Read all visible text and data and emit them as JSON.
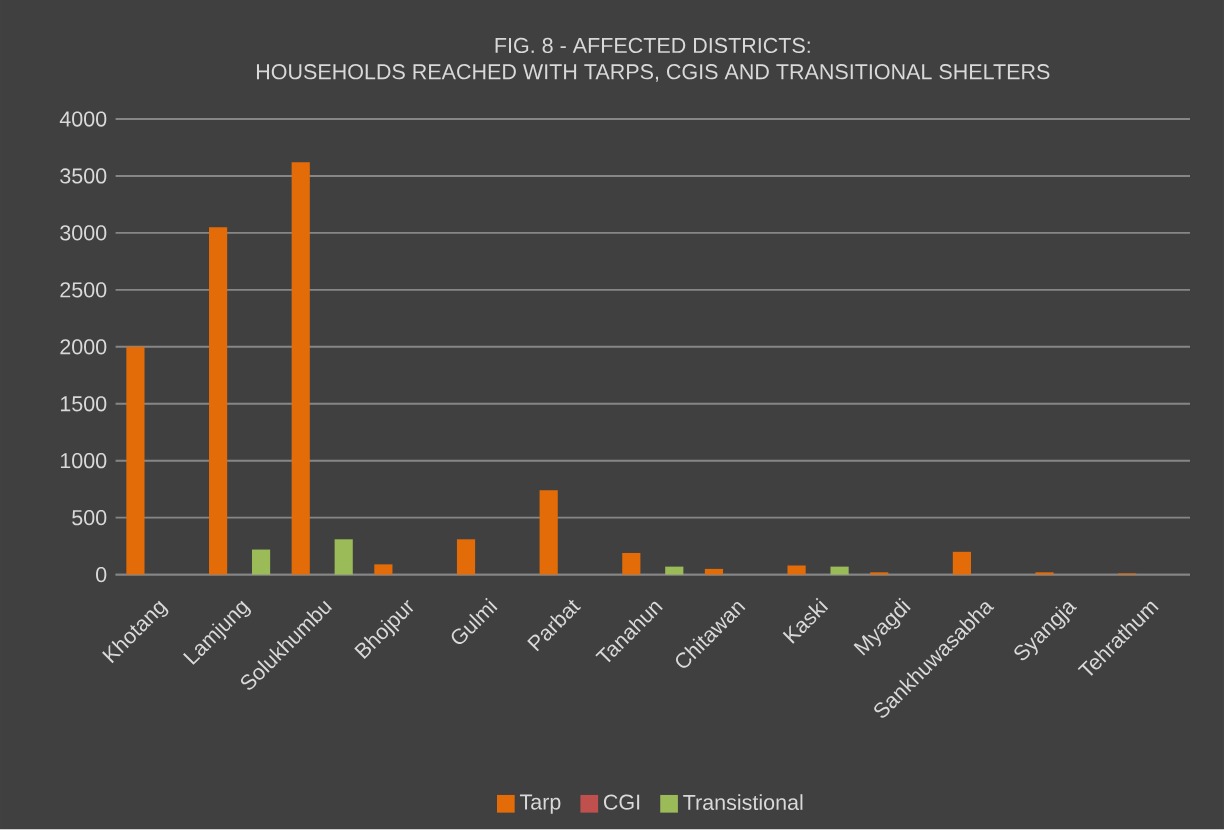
{
  "chart_data": {
    "type": "bar",
    "title": "FIG. 8 - AFFECTED DISTRICTS:\nHOUSEHOLDS REACHED WITH TARPS, CGIS AND TRANSITIONAL SHELTERS",
    "categories": [
      "Khotang",
      "Lamjung",
      "Solukhumbu",
      "Bhojpur",
      "Gulmi",
      "Parbat",
      "Tanahun",
      "Chitawan",
      "Kaski",
      "Myagdi",
      "Sankhuwasabha",
      "Syangja",
      "Tehrathum"
    ],
    "series": [
      {
        "name": "Tarp",
        "color": "#e36c09",
        "values": [
          2000,
          3050,
          3620,
          90,
          310,
          740,
          190,
          50,
          80,
          20,
          200,
          20,
          10
        ]
      },
      {
        "name": "CGI",
        "color": "#c0504d",
        "values": [
          0,
          0,
          0,
          0,
          0,
          0,
          null,
          0,
          0,
          0,
          0,
          0,
          0
        ]
      },
      {
        "name": "Transistional",
        "color": "#9bbb59",
        "values": [
          0,
          220,
          310,
          0,
          0,
          0,
          70,
          0,
          70,
          0,
          0,
          0,
          0
        ]
      }
    ],
    "ylim": [
      0,
      4000
    ],
    "yticks": [
      0,
      500,
      1000,
      1500,
      2000,
      2500,
      3000,
      3500,
      4000
    ],
    "grid": "y",
    "legend": "bottom"
  }
}
